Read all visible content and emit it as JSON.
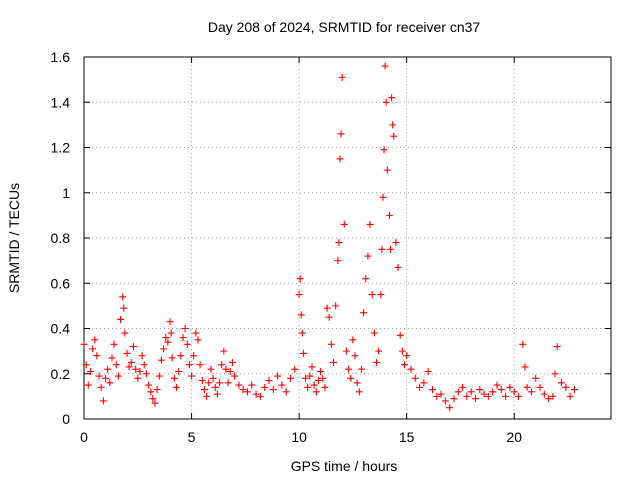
{
  "chart_data": {
    "type": "scatter",
    "title": "Day 208 of 2024, SRMTID for receiver cn37",
    "xlabel": "GPS time / hours",
    "ylabel": "SRMTID / TECUs",
    "xlim": [
      0,
      24.5
    ],
    "ylim": [
      0,
      1.6
    ],
    "xticks": [
      0,
      5,
      10,
      15,
      20
    ],
    "xtick_labels": [
      "0",
      "5",
      "10",
      "15",
      "20"
    ],
    "yticks": [
      0,
      0.2,
      0.4,
      0.6,
      0.8,
      1,
      1.2,
      1.4,
      1.6
    ],
    "ytick_labels": [
      "0",
      "0.2",
      "0.4",
      "0.6",
      "0.8",
      "1",
      "1.2",
      "1.4",
      "1.6"
    ],
    "grid": true,
    "marker": "+",
    "series": [
      {
        "name": "SRMTID",
        "color": "#ff0000",
        "x": [
          0.0,
          0.1,
          0.2,
          0.3,
          0.4,
          0.5,
          0.6,
          0.7,
          0.8,
          0.9,
          1.0,
          1.1,
          1.2,
          1.3,
          1.4,
          1.5,
          1.6,
          1.7,
          1.8,
          1.85,
          1.9,
          2.0,
          2.1,
          2.2,
          2.3,
          2.4,
          2.5,
          2.6,
          2.7,
          2.8,
          2.9,
          3.0,
          3.1,
          3.2,
          3.3,
          3.4,
          3.5,
          3.6,
          3.7,
          3.8,
          3.9,
          4.0,
          4.05,
          4.1,
          4.2,
          4.3,
          4.4,
          4.5,
          4.6,
          4.7,
          4.8,
          4.9,
          5.0,
          5.1,
          5.2,
          5.3,
          5.4,
          5.5,
          5.6,
          5.7,
          5.8,
          5.9,
          6.0,
          6.1,
          6.2,
          6.3,
          6.4,
          6.5,
          6.6,
          6.7,
          6.8,
          6.9,
          7.0,
          7.2,
          7.4,
          7.6,
          7.8,
          8.0,
          8.2,
          8.4,
          8.6,
          8.8,
          9.0,
          9.2,
          9.4,
          9.6,
          9.8,
          10.0,
          10.05,
          10.1,
          10.15,
          10.2,
          10.3,
          10.4,
          10.5,
          10.6,
          10.7,
          10.8,
          10.9,
          11.0,
          11.1,
          11.2,
          11.3,
          11.4,
          11.5,
          11.6,
          11.7,
          11.8,
          11.85,
          11.9,
          11.95,
          12.0,
          12.1,
          12.2,
          12.3,
          12.4,
          12.5,
          12.6,
          12.7,
          12.8,
          12.9,
          13.0,
          13.1,
          13.2,
          13.3,
          13.4,
          13.5,
          13.6,
          13.7,
          13.8,
          13.85,
          13.9,
          13.95,
          14.0,
          14.05,
          14.1,
          14.2,
          14.25,
          14.3,
          14.35,
          14.4,
          14.5,
          14.6,
          14.7,
          14.8,
          14.9,
          15.0,
          15.2,
          15.4,
          15.6,
          15.8,
          16.0,
          16.2,
          16.4,
          16.6,
          16.8,
          17.0,
          17.2,
          17.4,
          17.6,
          17.8,
          18.0,
          18.2,
          18.4,
          18.6,
          18.8,
          19.0,
          19.2,
          19.4,
          19.6,
          19.8,
          20.0,
          20.2,
          20.4,
          20.5,
          20.6,
          20.8,
          21.0,
          21.2,
          21.4,
          21.6,
          21.8,
          21.9,
          22.0,
          22.2,
          22.4,
          22.6,
          22.8
        ],
        "y": [
          0.33,
          0.24,
          0.15,
          0.21,
          0.31,
          0.35,
          0.28,
          0.19,
          0.14,
          0.08,
          0.18,
          0.22,
          0.16,
          0.27,
          0.33,
          0.24,
          0.19,
          0.44,
          0.54,
          0.49,
          0.38,
          0.29,
          0.23,
          0.25,
          0.32,
          0.22,
          0.18,
          0.21,
          0.28,
          0.24,
          0.2,
          0.15,
          0.12,
          0.09,
          0.07,
          0.13,
          0.19,
          0.26,
          0.31,
          0.36,
          0.34,
          0.43,
          0.38,
          0.27,
          0.18,
          0.14,
          0.21,
          0.28,
          0.36,
          0.4,
          0.33,
          0.24,
          0.19,
          0.28,
          0.38,
          0.35,
          0.24,
          0.17,
          0.13,
          0.1,
          0.16,
          0.22,
          0.18,
          0.14,
          0.11,
          0.16,
          0.24,
          0.3,
          0.22,
          0.16,
          0.21,
          0.25,
          0.19,
          0.15,
          0.13,
          0.12,
          0.15,
          0.11,
          0.1,
          0.14,
          0.17,
          0.13,
          0.19,
          0.15,
          0.12,
          0.18,
          0.22,
          0.55,
          0.62,
          0.46,
          0.38,
          0.29,
          0.18,
          0.14,
          0.19,
          0.23,
          0.15,
          0.12,
          0.17,
          0.21,
          0.18,
          0.14,
          0.49,
          0.45,
          0.33,
          0.25,
          0.5,
          0.7,
          0.78,
          1.15,
          1.26,
          1.51,
          0.86,
          0.3,
          0.22,
          0.18,
          0.35,
          0.28,
          0.16,
          0.12,
          0.22,
          0.47,
          0.62,
          0.72,
          0.86,
          0.55,
          0.38,
          0.25,
          0.3,
          0.55,
          0.75,
          0.98,
          1.19,
          1.56,
          1.4,
          1.1,
          0.9,
          0.75,
          1.42,
          1.3,
          1.25,
          0.78,
          0.67,
          0.37,
          0.3,
          0.24,
          0.28,
          0.22,
          0.18,
          0.14,
          0.16,
          0.21,
          0.13,
          0.1,
          0.11,
          0.08,
          0.05,
          0.09,
          0.12,
          0.14,
          0.1,
          0.12,
          0.09,
          0.13,
          0.11,
          0.1,
          0.12,
          0.15,
          0.13,
          0.1,
          0.14,
          0.12,
          0.1,
          0.33,
          0.23,
          0.14,
          0.12,
          0.18,
          0.14,
          0.11,
          0.09,
          0.1,
          0.2,
          0.32,
          0.16,
          0.14,
          0.1,
          0.13
        ]
      }
    ]
  }
}
